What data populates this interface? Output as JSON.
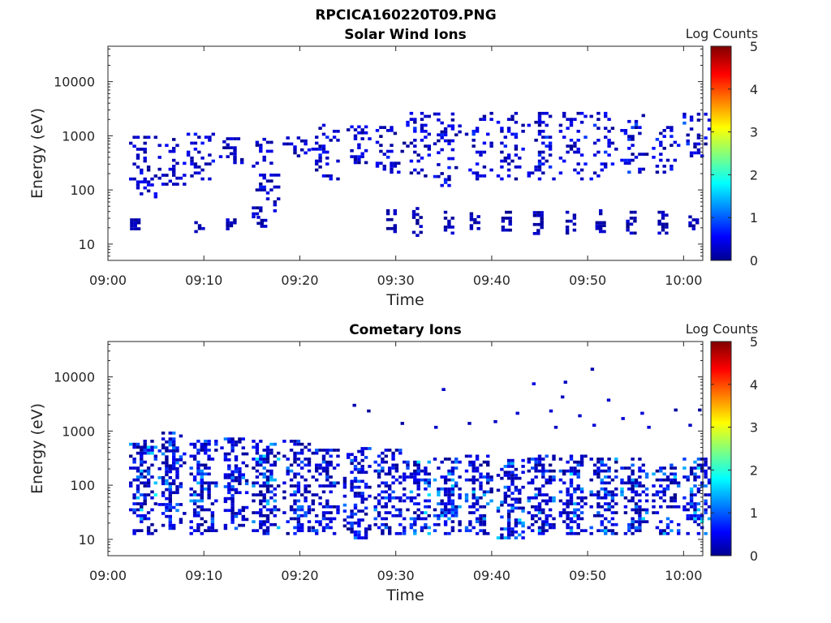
{
  "figure": {
    "title": "RPCICA160220T09.PNG",
    "colormap": "jet"
  },
  "chart_data": [
    {
      "type": "heatmap",
      "title": "Solar Wind Ions",
      "xlabel": "Time",
      "ylabel": "Energy (eV)",
      "y_scale": "log",
      "ylim": [
        5,
        45000
      ],
      "xlim": [
        "09:00",
        "10:02"
      ],
      "x_ticks": [
        "09:00",
        "09:10",
        "09:20",
        "09:30",
        "09:40",
        "09:50",
        "10:00"
      ],
      "y_ticks": [
        "10",
        "100",
        "1000",
        "10000"
      ],
      "colorbar": {
        "label": "Log Counts",
        "min": 0,
        "max": 5,
        "ticks": [
          "0",
          "1",
          "2",
          "3",
          "4",
          "5"
        ]
      },
      "clusters": [
        {
          "t": 3.5,
          "lo": 70,
          "hi": 900,
          "f": 0.45,
          "c": 0.3
        },
        {
          "t": 6.5,
          "lo": 120,
          "hi": 900,
          "f": 0.35,
          "c": 0.25
        },
        {
          "t": 9.5,
          "lo": 150,
          "hi": 1200,
          "f": 0.35,
          "c": 0.3
        },
        {
          "t": 12.5,
          "lo": 300,
          "hi": 900,
          "f": 0.3,
          "c": 0.25
        },
        {
          "t": 16.3,
          "lo": 30,
          "hi": 900,
          "f": 0.35,
          "c": 0.3
        },
        {
          "t": 19.5,
          "lo": 400,
          "hi": 900,
          "f": 0.25,
          "c": 0.2
        },
        {
          "t": 22.5,
          "lo": 150,
          "hi": 1500,
          "f": 0.35,
          "c": 0.35
        },
        {
          "t": 25.8,
          "lo": 300,
          "hi": 1500,
          "f": 0.35,
          "c": 0.4
        },
        {
          "t": 29.2,
          "lo": 200,
          "hi": 1500,
          "f": 0.3,
          "c": 0.35
        },
        {
          "t": 32.0,
          "lo": 150,
          "hi": 2500,
          "f": 0.28,
          "c": 0.45
        },
        {
          "t": 35.2,
          "lo": 100,
          "hi": 2500,
          "f": 0.28,
          "c": 0.45
        },
        {
          "t": 38.5,
          "lo": 150,
          "hi": 2500,
          "f": 0.28,
          "c": 0.45
        },
        {
          "t": 41.8,
          "lo": 150,
          "hi": 2500,
          "f": 0.3,
          "c": 0.5
        },
        {
          "t": 45.0,
          "lo": 150,
          "hi": 2500,
          "f": 0.3,
          "c": 0.55
        },
        {
          "t": 48.3,
          "lo": 150,
          "hi": 2500,
          "f": 0.3,
          "c": 0.6
        },
        {
          "t": 51.5,
          "lo": 150,
          "hi": 2500,
          "f": 0.28,
          "c": 0.5
        },
        {
          "t": 54.7,
          "lo": 200,
          "hi": 2500,
          "f": 0.28,
          "c": 0.6
        },
        {
          "t": 58.0,
          "lo": 200,
          "hi": 1500,
          "f": 0.28,
          "c": 0.45
        },
        {
          "t": 61.2,
          "lo": 400,
          "hi": 2500,
          "f": 0.3,
          "c": 0.7
        }
      ],
      "low_clusters": [
        {
          "t": 2.8,
          "lo": 18,
          "hi": 28
        },
        {
          "t": 9.5,
          "lo": 16,
          "hi": 26
        },
        {
          "t": 12.8,
          "lo": 18,
          "hi": 28
        },
        {
          "t": 16.0,
          "lo": 20,
          "hi": 30
        },
        {
          "t": 29.5,
          "lo": 16,
          "hi": 40
        },
        {
          "t": 32.2,
          "lo": 12,
          "hi": 45
        },
        {
          "t": 35.5,
          "lo": 15,
          "hi": 40
        },
        {
          "t": 38.2,
          "lo": 16,
          "hi": 35
        },
        {
          "t": 41.5,
          "lo": 15,
          "hi": 40
        },
        {
          "t": 44.8,
          "lo": 13,
          "hi": 45
        },
        {
          "t": 48.2,
          "lo": 15,
          "hi": 40
        },
        {
          "t": 51.3,
          "lo": 16,
          "hi": 40
        },
        {
          "t": 54.5,
          "lo": 15,
          "hi": 40
        },
        {
          "t": 57.8,
          "lo": 15,
          "hi": 40
        },
        {
          "t": 61.0,
          "lo": 18,
          "hi": 30
        }
      ]
    },
    {
      "type": "heatmap",
      "title": "Cometary Ions",
      "xlabel": "Time",
      "ylabel": "Energy (eV)",
      "y_scale": "log",
      "ylim": [
        5,
        45000
      ],
      "xlim": [
        "09:00",
        "10:02"
      ],
      "x_ticks": [
        "09:00",
        "09:10",
        "09:20",
        "09:30",
        "09:40",
        "09:50",
        "10:00"
      ],
      "y_ticks": [
        "10",
        "100",
        "1000",
        "10000"
      ],
      "colorbar": {
        "label": "Log Counts",
        "min": 0,
        "max": 5,
        "ticks": [
          "0",
          "1",
          "2",
          "3",
          "4",
          "5"
        ]
      },
      "clusters": [
        {
          "t": 3.5,
          "lo": 12,
          "hi": 650,
          "f": 0.6,
          "c": 1.4
        },
        {
          "t": 6.5,
          "lo": 15,
          "hi": 900,
          "f": 0.6,
          "c": 1.0
        },
        {
          "t": 9.8,
          "lo": 12,
          "hi": 650,
          "f": 0.6,
          "c": 1.0
        },
        {
          "t": 13.0,
          "lo": 15,
          "hi": 700,
          "f": 0.6,
          "c": 1.0
        },
        {
          "t": 16.3,
          "lo": 12,
          "hi": 650,
          "f": 0.65,
          "c": 1.5
        },
        {
          "t": 19.5,
          "lo": 12,
          "hi": 650,
          "f": 0.6,
          "c": 1.0
        },
        {
          "t": 22.5,
          "lo": 12,
          "hi": 450,
          "f": 0.55,
          "c": 0.8
        },
        {
          "t": 25.8,
          "lo": 10,
          "hi": 450,
          "f": 0.55,
          "c": 0.9
        },
        {
          "t": 29.0,
          "lo": 12,
          "hi": 450,
          "f": 0.55,
          "c": 1.1
        },
        {
          "t": 32.0,
          "lo": 12,
          "hi": 300,
          "f": 0.6,
          "c": 1.3
        },
        {
          "t": 35.2,
          "lo": 12,
          "hi": 300,
          "f": 0.6,
          "c": 1.3
        },
        {
          "t": 38.5,
          "lo": 12,
          "hi": 350,
          "f": 0.6,
          "c": 1.2
        },
        {
          "t": 41.8,
          "lo": 10,
          "hi": 300,
          "f": 0.6,
          "c": 1.2
        },
        {
          "t": 45.0,
          "lo": 12,
          "hi": 350,
          "f": 0.6,
          "c": 1.3
        },
        {
          "t": 48.3,
          "lo": 12,
          "hi": 350,
          "f": 0.6,
          "c": 1.4
        },
        {
          "t": 51.5,
          "lo": 12,
          "hi": 300,
          "f": 0.6,
          "c": 1.2
        },
        {
          "t": 54.7,
          "lo": 12,
          "hi": 300,
          "f": 0.6,
          "c": 1.2
        },
        {
          "t": 58.0,
          "lo": 12,
          "hi": 250,
          "f": 0.55,
          "c": 1.2
        },
        {
          "t": 61.2,
          "lo": 12,
          "hi": 300,
          "f": 0.6,
          "c": 1.4
        }
      ],
      "sparse_high": [
        {
          "t": 25.5,
          "e": 2800
        },
        {
          "t": 27.0,
          "e": 2200
        },
        {
          "t": 30.5,
          "e": 1300
        },
        {
          "t": 34.0,
          "e": 1100
        },
        {
          "t": 34.8,
          "e": 5500
        },
        {
          "t": 37.5,
          "e": 1300
        },
        {
          "t": 40.2,
          "e": 1400
        },
        {
          "t": 42.5,
          "e": 2000
        },
        {
          "t": 44.2,
          "e": 7000
        },
        {
          "t": 46.0,
          "e": 2200
        },
        {
          "t": 46.5,
          "e": 1100
        },
        {
          "t": 47.5,
          "e": 7500
        },
        {
          "t": 47.2,
          "e": 4000
        },
        {
          "t": 49.0,
          "e": 1800
        },
        {
          "t": 50.3,
          "e": 13000
        },
        {
          "t": 50.5,
          "e": 1200
        },
        {
          "t": 52.0,
          "e": 3500
        },
        {
          "t": 53.5,
          "e": 1600
        },
        {
          "t": 55.5,
          "e": 2000
        },
        {
          "t": 56.2,
          "e": 1100
        },
        {
          "t": 59.0,
          "e": 2300
        },
        {
          "t": 60.5,
          "e": 1200
        },
        {
          "t": 61.5,
          "e": 2300
        }
      ]
    }
  ]
}
